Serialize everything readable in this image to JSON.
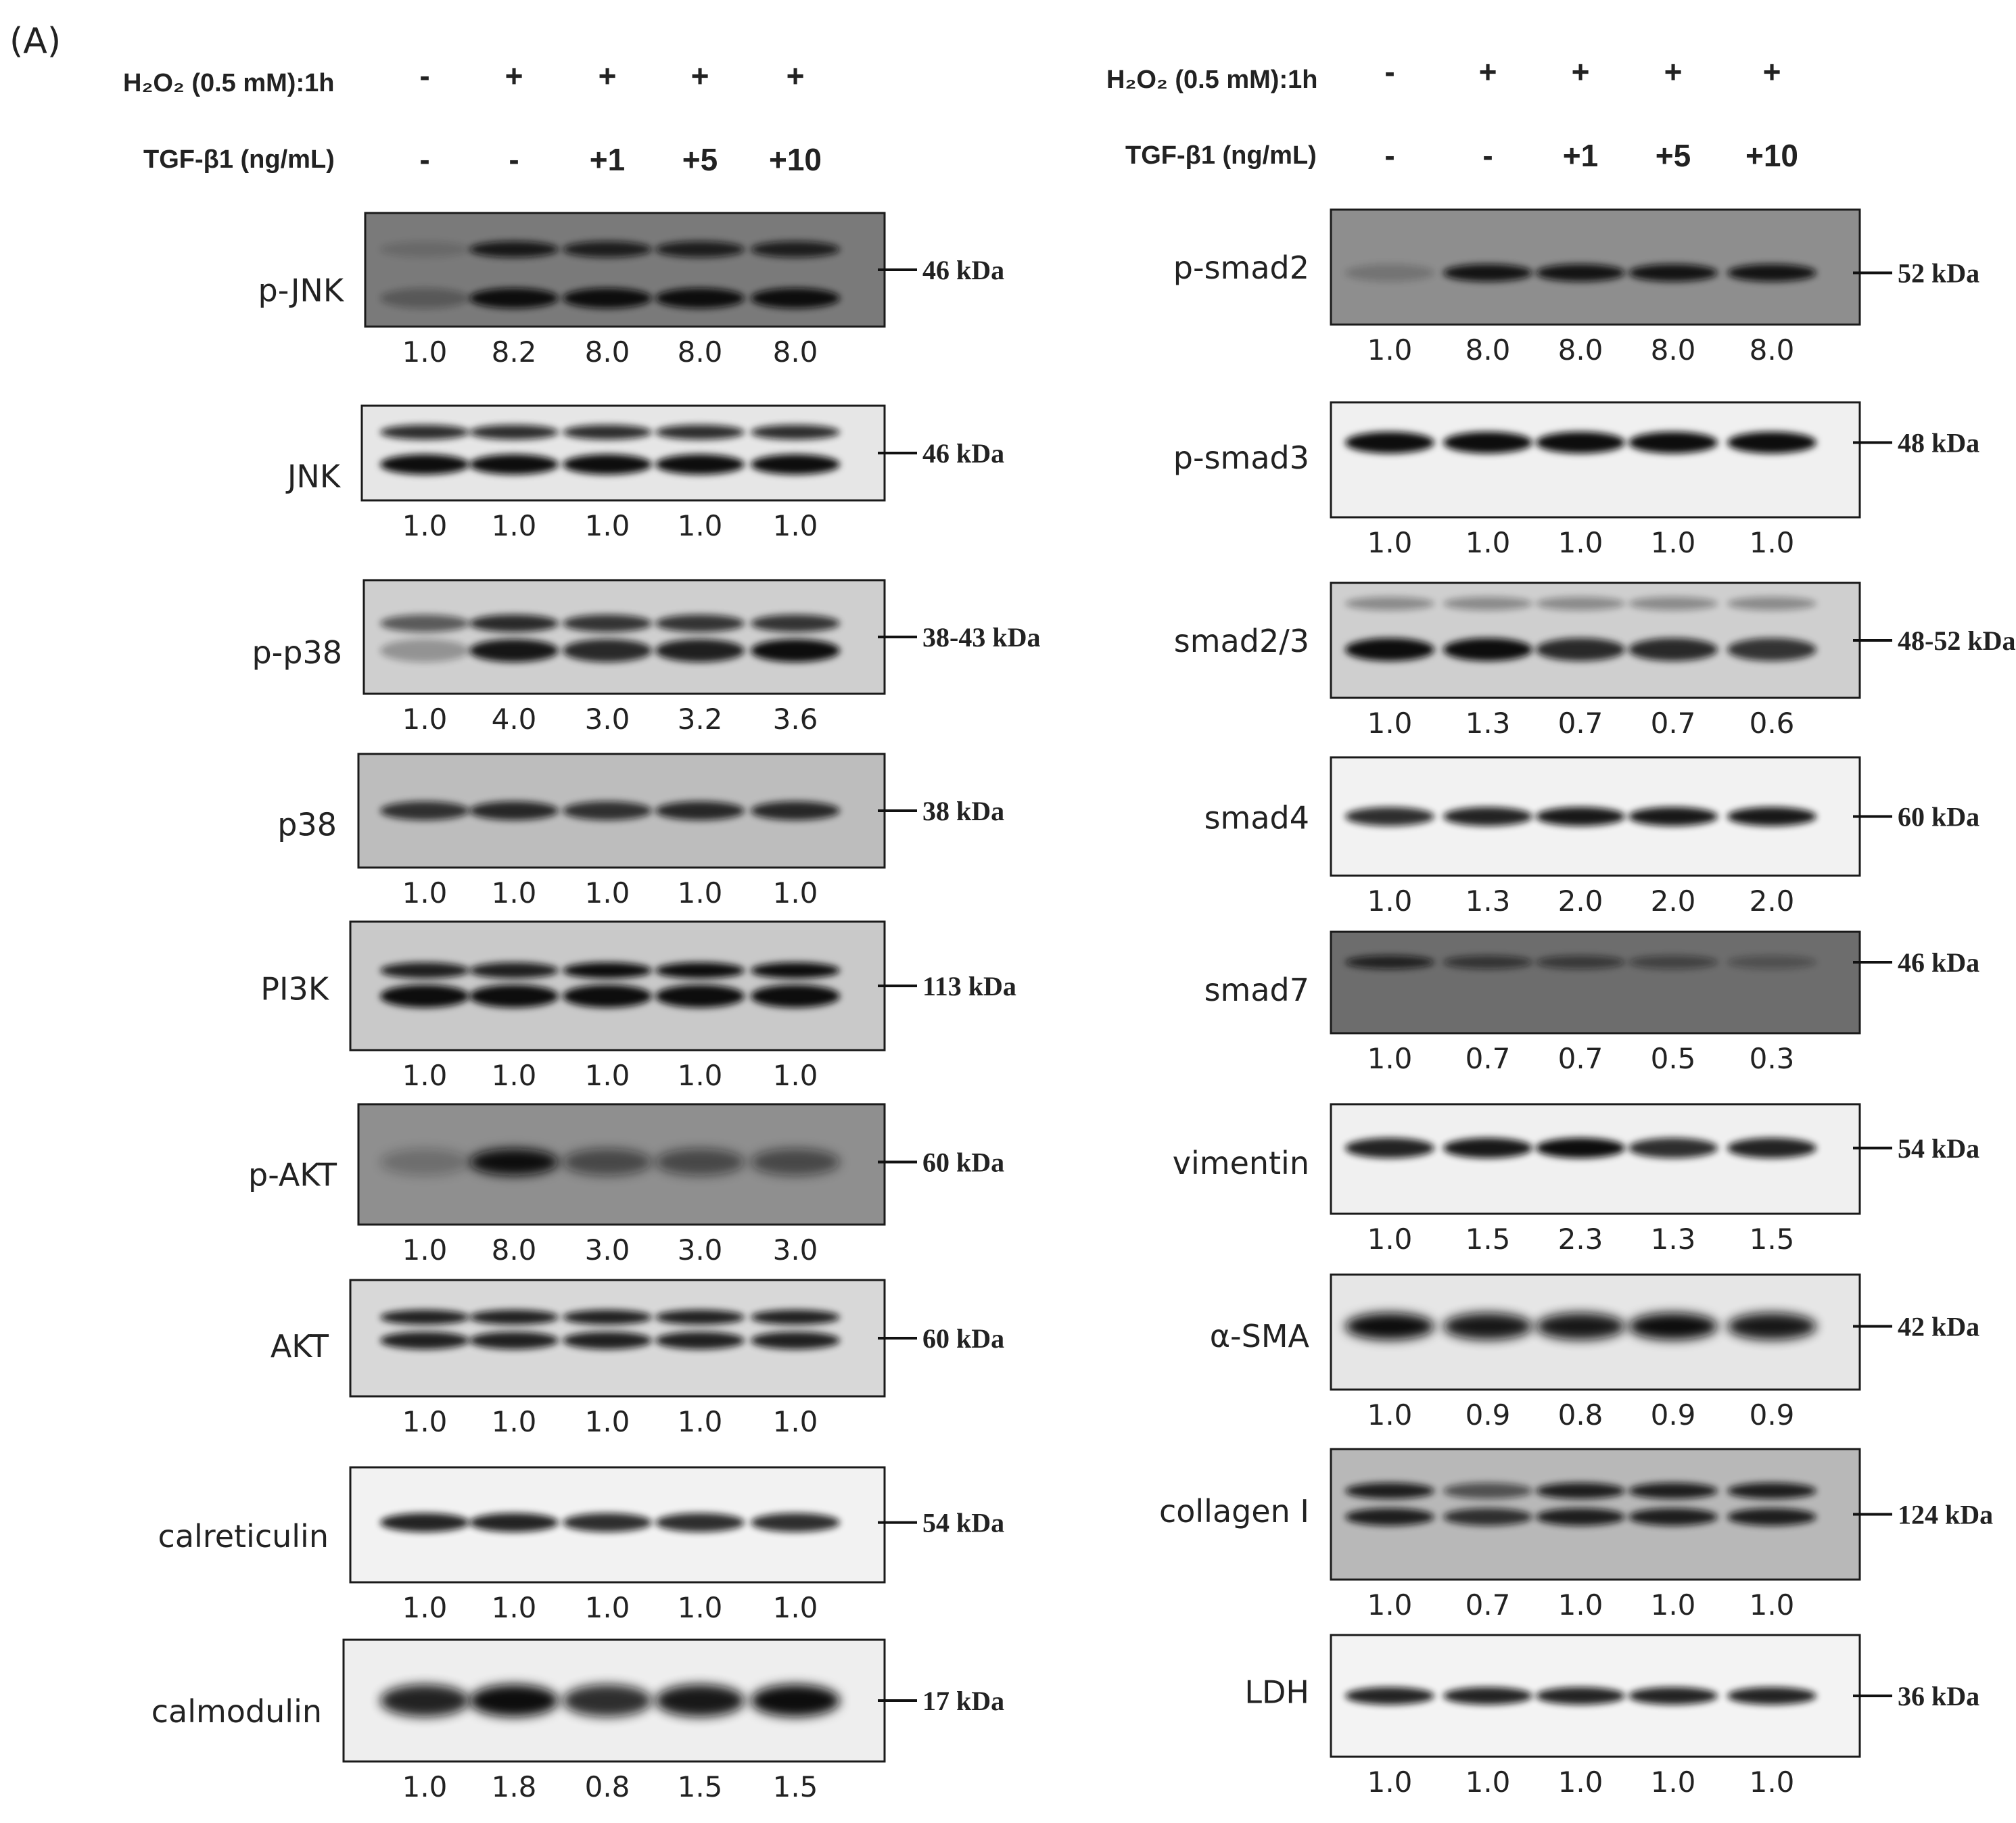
{
  "panel_label": "(A)",
  "header": {
    "h2o2_label": "H₂O₂ (0.5 mM):1h",
    "tgf_label": "TGF-β1 (ng/mL)",
    "h2o2_values": [
      "-",
      "+",
      "+",
      "+",
      "+"
    ],
    "tgf_values": [
      "-",
      "-",
      "+1",
      "+5",
      "+10"
    ]
  },
  "left_blots": [
    {
      "protein": "p-JNK",
      "kda": "46 kDa",
      "values": [
        "1.0",
        "8.2",
        "8.0",
        "8.0",
        "8.0"
      ]
    },
    {
      "protein": "JNK",
      "kda": "46 kDa",
      "values": [
        "1.0",
        "1.0",
        "1.0",
        "1.0",
        "1.0"
      ]
    },
    {
      "protein": "p-p38",
      "kda": "38-43 kDa",
      "values": [
        "1.0",
        "4.0",
        "3.0",
        "3.2",
        "3.6"
      ]
    },
    {
      "protein": "p38",
      "kda": "38 kDa",
      "values": [
        "1.0",
        "1.0",
        "1.0",
        "1.0",
        "1.0"
      ]
    },
    {
      "protein": "PI3K",
      "kda": "113 kDa",
      "values": [
        "1.0",
        "1.0",
        "1.0",
        "1.0",
        "1.0"
      ]
    },
    {
      "protein": "p-AKT",
      "kda": "60 kDa",
      "values": [
        "1.0",
        "8.0",
        "3.0",
        "3.0",
        "3.0"
      ]
    },
    {
      "protein": "AKT",
      "kda": "60 kDa",
      "values": [
        "1.0",
        "1.0",
        "1.0",
        "1.0",
        "1.0"
      ]
    },
    {
      "protein": "calreticulin",
      "kda": "54 kDa",
      "values": [
        "1.0",
        "1.0",
        "1.0",
        "1.0",
        "1.0"
      ]
    },
    {
      "protein": "calmodulin",
      "kda": "17 kDa",
      "values": [
        "1.0",
        "1.8",
        "0.8",
        "1.5",
        "1.5"
      ]
    }
  ],
  "right_blots": [
    {
      "protein": "p-smad2",
      "kda": "52 kDa",
      "values": [
        "1.0",
        "8.0",
        "8.0",
        "8.0",
        "8.0"
      ]
    },
    {
      "protein": "p-smad3",
      "kda": "48 kDa",
      "values": [
        "1.0",
        "1.0",
        "1.0",
        "1.0",
        "1.0"
      ]
    },
    {
      "protein": "smad2/3",
      "kda": "48-52 kDa",
      "values": [
        "1.0",
        "1.3",
        "0.7",
        "0.7",
        "0.6"
      ]
    },
    {
      "protein": "smad4",
      "kda": "60 kDa",
      "values": [
        "1.0",
        "1.3",
        "2.0",
        "2.0",
        "2.0"
      ]
    },
    {
      "protein": "smad7",
      "kda": "46 kDa",
      "values": [
        "1.0",
        "0.7",
        "0.7",
        "0.5",
        "0.3"
      ]
    },
    {
      "protein": "vimentin",
      "kda": "54 kDa",
      "values": [
        "1.0",
        "1.5",
        "2.3",
        "1.3",
        "1.5"
      ]
    },
    {
      "protein": "α-SMA",
      "kda": "42 kDa",
      "values": [
        "1.0",
        "0.9",
        "0.8",
        "0.9",
        "0.9"
      ]
    },
    {
      "protein": "collagen I",
      "kda": "124 kDa",
      "values": [
        "1.0",
        "0.7",
        "1.0",
        "1.0",
        "1.0"
      ]
    },
    {
      "protein": "LDH",
      "kda": "36 kDa",
      "values": [
        "1.0",
        "1.0",
        "1.0",
        "1.0",
        "1.0"
      ]
    }
  ],
  "colors": {
    "membrane_dark": "#6b6b6b",
    "membrane_light": "#dcdcdc",
    "band": "#111111"
  }
}
